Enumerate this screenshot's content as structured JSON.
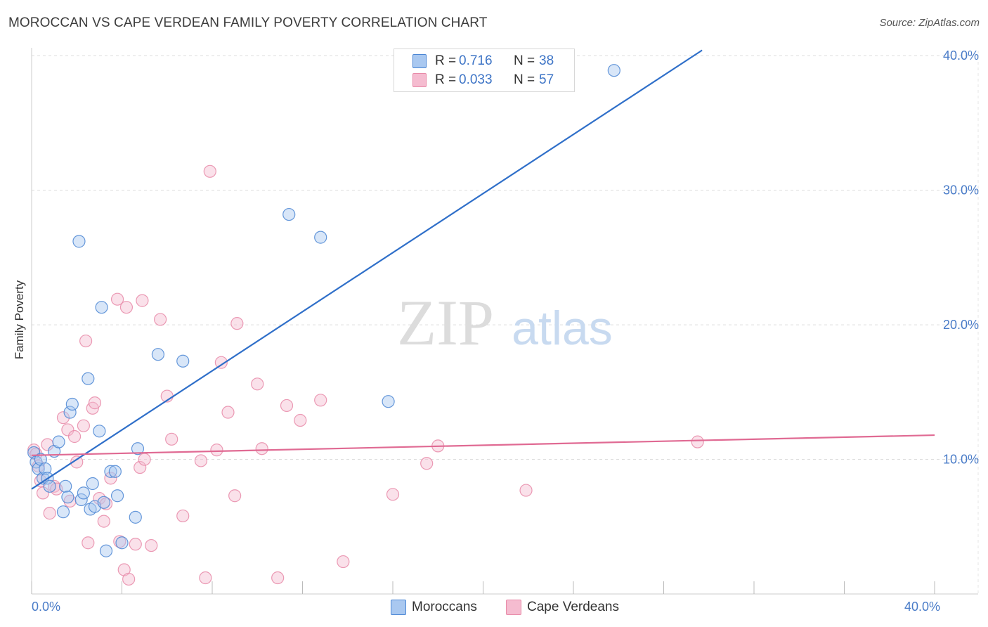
{
  "header": {
    "title": "MOROCCAN VS CAPE VERDEAN FAMILY POVERTY CORRELATION CHART",
    "source": "Source: ZipAtlas.com"
  },
  "watermark": {
    "zip": "ZIP",
    "atlas": "atlas"
  },
  "legend": {
    "r_label": "R =",
    "n_label": "N =",
    "rows": [
      {
        "r": "0.716",
        "n": "38",
        "color": "#a9c8f0"
      },
      {
        "r": "0.033",
        "n": "57",
        "color": "#f5bcd0"
      }
    ]
  },
  "bottom_legend": [
    {
      "label": "Moroccans",
      "color": "#a9c8f0"
    },
    {
      "label": "Cape Verdeans",
      "color": "#f5bcd0"
    }
  ],
  "colors": {
    "blue_fill": "#a9c8f0",
    "blue_stroke": "#4b86d4",
    "blue_line": "#2f6fc9",
    "pink_fill": "#f5bcd0",
    "pink_stroke": "#e88aa8",
    "pink_line": "#e06a93",
    "tick_text": "#4a7cc8",
    "grid": "#dddddd"
  },
  "chart_data": {
    "type": "scatter",
    "title": "MOROCCAN VS CAPE VERDEAN FAMILY POVERTY CORRELATION CHART",
    "xlabel": "",
    "ylabel": "Family Poverty",
    "xlim": [
      0,
      40
    ],
    "ylim": [
      0,
      41
    ],
    "x_tick_labels": [
      {
        "value": 0,
        "label": "0.0%"
      },
      {
        "value": 40,
        "label": "40.0%"
      }
    ],
    "y_tick_labels": [
      {
        "value": 10,
        "label": "10.0%"
      },
      {
        "value": 20,
        "label": "20.0%"
      },
      {
        "value": 30,
        "label": "30.0%"
      },
      {
        "value": 40,
        "label": "40.0%"
      }
    ],
    "series": [
      {
        "name": "Moroccans",
        "r": 0.716,
        "n": 38,
        "trend": {
          "x1": 0,
          "y1": 7.8,
          "x2": 29.7,
          "y2": 40.4
        },
        "points": [
          [
            0.1,
            10.5
          ],
          [
            0.2,
            9.8
          ],
          [
            0.3,
            9.3
          ],
          [
            0.4,
            10.0
          ],
          [
            0.5,
            8.6
          ],
          [
            0.6,
            9.3
          ],
          [
            0.7,
            8.6
          ],
          [
            0.8,
            8.0
          ],
          [
            1.0,
            10.6
          ],
          [
            1.2,
            11.3
          ],
          [
            1.4,
            6.1
          ],
          [
            1.5,
            8.0
          ],
          [
            1.6,
            7.2
          ],
          [
            1.7,
            13.5
          ],
          [
            1.8,
            14.1
          ],
          [
            2.1,
            26.2
          ],
          [
            2.2,
            7.0
          ],
          [
            2.3,
            7.5
          ],
          [
            2.5,
            16.0
          ],
          [
            2.6,
            6.3
          ],
          [
            2.7,
            8.2
          ],
          [
            2.8,
            6.5
          ],
          [
            3.0,
            12.1
          ],
          [
            3.1,
            21.3
          ],
          [
            3.2,
            6.8
          ],
          [
            3.3,
            3.2
          ],
          [
            3.5,
            9.1
          ],
          [
            3.7,
            9.1
          ],
          [
            3.8,
            7.3
          ],
          [
            4.0,
            3.8
          ],
          [
            4.6,
            5.7
          ],
          [
            4.7,
            10.8
          ],
          [
            5.6,
            17.8
          ],
          [
            6.7,
            17.3
          ],
          [
            11.4,
            28.2
          ],
          [
            12.8,
            26.5
          ],
          [
            15.8,
            14.3
          ],
          [
            25.8,
            38.9
          ]
        ]
      },
      {
        "name": "Cape Verdeans",
        "r": 0.033,
        "n": 57,
        "trend": {
          "x1": 0,
          "y1": 10.3,
          "x2": 40,
          "y2": 11.8
        },
        "points": [
          [
            0.1,
            10.7
          ],
          [
            0.3,
            9.5
          ],
          [
            0.4,
            8.4
          ],
          [
            0.5,
            7.5
          ],
          [
            0.7,
            11.1
          ],
          [
            0.8,
            6.0
          ],
          [
            1.0,
            8.0
          ],
          [
            1.1,
            7.8
          ],
          [
            1.4,
            13.1
          ],
          [
            1.6,
            12.2
          ],
          [
            1.7,
            6.9
          ],
          [
            1.9,
            11.7
          ],
          [
            2.0,
            9.8
          ],
          [
            2.3,
            12.5
          ],
          [
            2.4,
            18.8
          ],
          [
            2.5,
            3.8
          ],
          [
            2.7,
            13.8
          ],
          [
            2.8,
            14.2
          ],
          [
            3.0,
            7.1
          ],
          [
            3.2,
            5.4
          ],
          [
            3.3,
            6.7
          ],
          [
            3.5,
            8.6
          ],
          [
            3.8,
            21.9
          ],
          [
            3.9,
            3.9
          ],
          [
            4.1,
            1.8
          ],
          [
            4.2,
            21.3
          ],
          [
            4.3,
            1.1
          ],
          [
            4.6,
            3.7
          ],
          [
            4.8,
            9.4
          ],
          [
            4.9,
            21.8
          ],
          [
            5.0,
            10.0
          ],
          [
            5.3,
            3.6
          ],
          [
            5.7,
            20.4
          ],
          [
            6.0,
            14.7
          ],
          [
            6.2,
            11.5
          ],
          [
            6.7,
            5.8
          ],
          [
            7.5,
            9.9
          ],
          [
            7.7,
            1.2
          ],
          [
            7.9,
            31.4
          ],
          [
            8.2,
            10.7
          ],
          [
            8.4,
            17.2
          ],
          [
            8.7,
            13.5
          ],
          [
            9.0,
            7.3
          ],
          [
            9.1,
            20.1
          ],
          [
            10.0,
            15.6
          ],
          [
            10.2,
            10.8
          ],
          [
            10.9,
            1.2
          ],
          [
            11.3,
            14.0
          ],
          [
            11.9,
            12.9
          ],
          [
            12.8,
            14.4
          ],
          [
            13.8,
            2.4
          ],
          [
            16.0,
            7.4
          ],
          [
            17.5,
            9.7
          ],
          [
            18.0,
            11.0
          ],
          [
            21.9,
            7.7
          ],
          [
            29.5,
            11.3
          ],
          [
            0.2,
            10.4
          ]
        ]
      }
    ]
  }
}
